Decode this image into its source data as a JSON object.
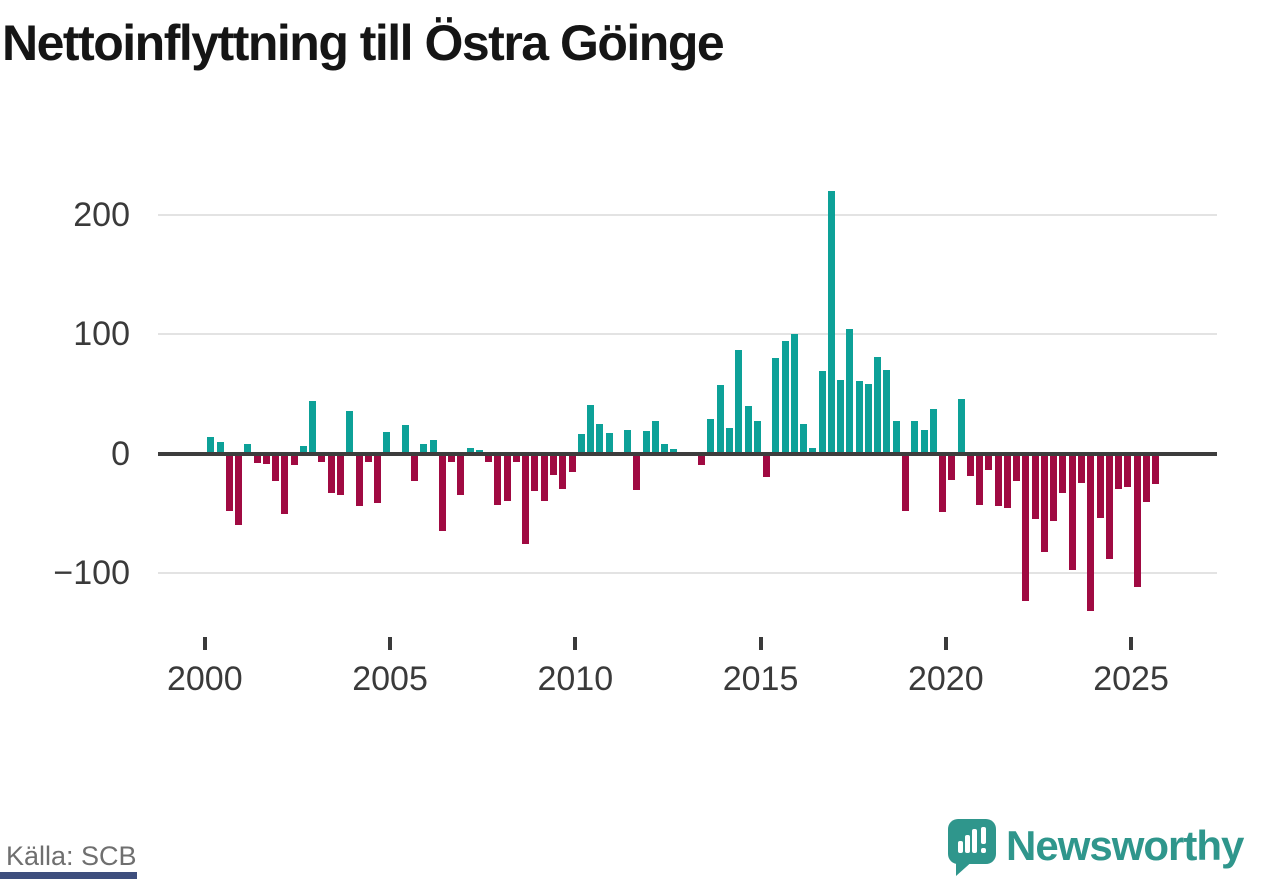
{
  "title": "Nettoinflyttning till Östra Göinge",
  "source": "Källa: SCB",
  "brand": {
    "name": "Newsworthy",
    "color": "#2f968c"
  },
  "colors": {
    "positive_bar": "#0da198",
    "negative_bar": "#a00a42",
    "axis_line": "#3d3d3d",
    "gridline": "#e3e3e3",
    "tick_text": "#3a3a3a",
    "title_text": "#151515",
    "source_text": "#6f6f6f",
    "footer_strip": "#3e4e7d"
  },
  "chart_data": {
    "type": "bar",
    "title": "Nettoinflyttning till Östra Göinge",
    "xlabel": "",
    "ylabel": "",
    "frequency": "quarterly",
    "start_period": "2000Q1",
    "end_period": "2025Q3",
    "y_ticks": [
      200,
      100,
      0,
      -100
    ],
    "y_tick_labels": [
      "200",
      "100",
      "0",
      "−100"
    ],
    "x_ticks": [
      2000,
      2005,
      2010,
      2015,
      2020,
      2025
    ],
    "x_tick_labels": [
      "2000",
      "2005",
      "2010",
      "2015",
      "2020",
      "2025"
    ],
    "ylim": [
      -140,
      235
    ],
    "grid": "horizontal",
    "legend": "none",
    "periods": [
      "2000Q1",
      "2000Q2",
      "2000Q3",
      "2000Q4",
      "2001Q1",
      "2001Q2",
      "2001Q3",
      "2001Q4",
      "2002Q1",
      "2002Q2",
      "2002Q3",
      "2002Q4",
      "2003Q1",
      "2003Q2",
      "2003Q3",
      "2003Q4",
      "2004Q1",
      "2004Q2",
      "2004Q3",
      "2004Q4",
      "2005Q1",
      "2005Q2",
      "2005Q3",
      "2005Q4",
      "2006Q1",
      "2006Q2",
      "2006Q3",
      "2006Q4",
      "2007Q1",
      "2007Q2",
      "2007Q3",
      "2007Q4",
      "2008Q1",
      "2008Q2",
      "2008Q3",
      "2008Q4",
      "2009Q1",
      "2009Q2",
      "2009Q3",
      "2009Q4",
      "2010Q1",
      "2010Q2",
      "2010Q3",
      "2010Q4",
      "2011Q1",
      "2011Q2",
      "2011Q3",
      "2011Q4",
      "2012Q1",
      "2012Q2",
      "2012Q3",
      "2012Q4",
      "2013Q1",
      "2013Q2",
      "2013Q3",
      "2013Q4",
      "2014Q1",
      "2014Q2",
      "2014Q3",
      "2014Q4",
      "2015Q1",
      "2015Q2",
      "2015Q3",
      "2015Q4",
      "2016Q1",
      "2016Q2",
      "2016Q3",
      "2016Q4",
      "2017Q1",
      "2017Q2",
      "2017Q3",
      "2017Q4",
      "2018Q1",
      "2018Q2",
      "2018Q3",
      "2018Q4",
      "2019Q1",
      "2019Q2",
      "2019Q3",
      "2019Q4",
      "2020Q1",
      "2020Q2",
      "2020Q3",
      "2020Q4",
      "2021Q1",
      "2021Q2",
      "2021Q3",
      "2021Q4",
      "2022Q1",
      "2022Q2",
      "2022Q3",
      "2022Q4",
      "2023Q1",
      "2023Q2",
      "2023Q3",
      "2023Q4",
      "2024Q1",
      "2024Q2",
      "2024Q3",
      "2024Q4",
      "2025Q1",
      "2025Q2",
      "2025Q3"
    ],
    "values": [
      14,
      10,
      -47,
      -59,
      8,
      -7,
      -8,
      -22,
      -50,
      -9,
      6,
      44,
      -6,
      -32,
      -34,
      36,
      -43,
      -6,
      -41,
      18,
      0,
      24,
      -22,
      8,
      11,
      -64,
      -6,
      -34,
      5,
      3,
      -6,
      -42,
      -39,
      -6,
      -75,
      -31,
      -39,
      -17,
      -29,
      -15,
      16,
      41,
      25,
      17,
      0,
      20,
      -30,
      19,
      27,
      8,
      4,
      0,
      0,
      -9,
      29,
      57,
      21,
      87,
      40,
      27,
      -19,
      80,
      94,
      100,
      25,
      5,
      69,
      220,
      62,
      104,
      61,
      58,
      81,
      70,
      27,
      -47,
      27,
      20,
      37,
      -48,
      -21,
      46,
      -18,
      -42,
      -13,
      -43,
      -45,
      -22,
      -123,
      -54,
      -82,
      -56,
      -32,
      -97,
      -24,
      -131,
      -53,
      -88,
      -29,
      -27,
      -111,
      -40,
      -25
    ]
  }
}
